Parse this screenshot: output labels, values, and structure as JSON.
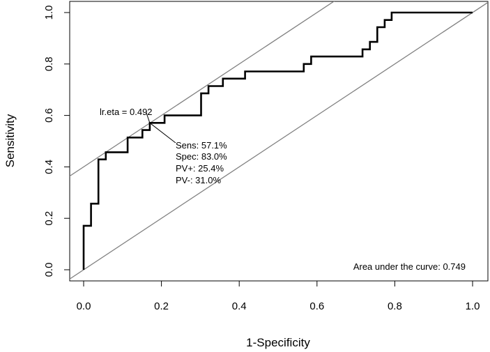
{
  "chart_data": {
    "type": "line",
    "title": "",
    "xlabel": "1-Specificity",
    "ylabel": "Sensitivity",
    "xlim": [
      0,
      1
    ],
    "ylim": [
      0,
      1
    ],
    "x_ticks": [
      "0.0",
      "0.2",
      "0.4",
      "0.6",
      "0.8",
      "1.0"
    ],
    "y_ticks": [
      "0.0",
      "0.2",
      "0.4",
      "0.6",
      "0.8",
      "1.0"
    ],
    "grid": false,
    "series": [
      {
        "name": "ROC curve",
        "color": "#000000",
        "x": [
          0,
          0,
          0.019,
          0.019,
          0.038,
          0.038,
          0.057,
          0.057,
          0.113,
          0.113,
          0.151,
          0.151,
          0.17,
          0.17,
          0.208,
          0.208,
          0.302,
          0.302,
          0.321,
          0.321,
          0.358,
          0.358,
          0.415,
          0.415,
          0.566,
          0.566,
          0.585,
          0.585,
          0.717,
          0.717,
          0.736,
          0.736,
          0.755,
          0.755,
          0.774,
          0.774,
          0.792,
          0.792,
          1.0
        ],
        "y": [
          0,
          0.171,
          0.171,
          0.257,
          0.257,
          0.429,
          0.429,
          0.457,
          0.457,
          0.514,
          0.514,
          0.543,
          0.543,
          0.571,
          0.571,
          0.6,
          0.6,
          0.686,
          0.686,
          0.714,
          0.714,
          0.743,
          0.743,
          0.771,
          0.771,
          0.8,
          0.8,
          0.829,
          0.829,
          0.857,
          0.857,
          0.886,
          0.886,
          0.943,
          0.943,
          0.971,
          0.971,
          1.0,
          1.0
        ]
      }
    ],
    "reference_lines": [
      {
        "name": "chance diagonal",
        "color": "#808080",
        "from": [
          0,
          0
        ],
        "to": [
          1,
          1
        ]
      },
      {
        "name": "optimal cutoff line",
        "color": "#808080",
        "from": [
          0,
          0.4
        ],
        "to": [
          0.64,
          1.04
        ]
      }
    ],
    "cutoff_point": {
      "x": 0.17,
      "y": 0.571
    },
    "annotations": {
      "cutoff_label": "lr.eta = 0.492",
      "stats": [
        "Sens: 57.1%",
        "Spec: 83.0%",
        "PV+: 25.4%",
        "PV-: 31.0%"
      ],
      "auc": "Area under the curve: 0.749"
    }
  }
}
